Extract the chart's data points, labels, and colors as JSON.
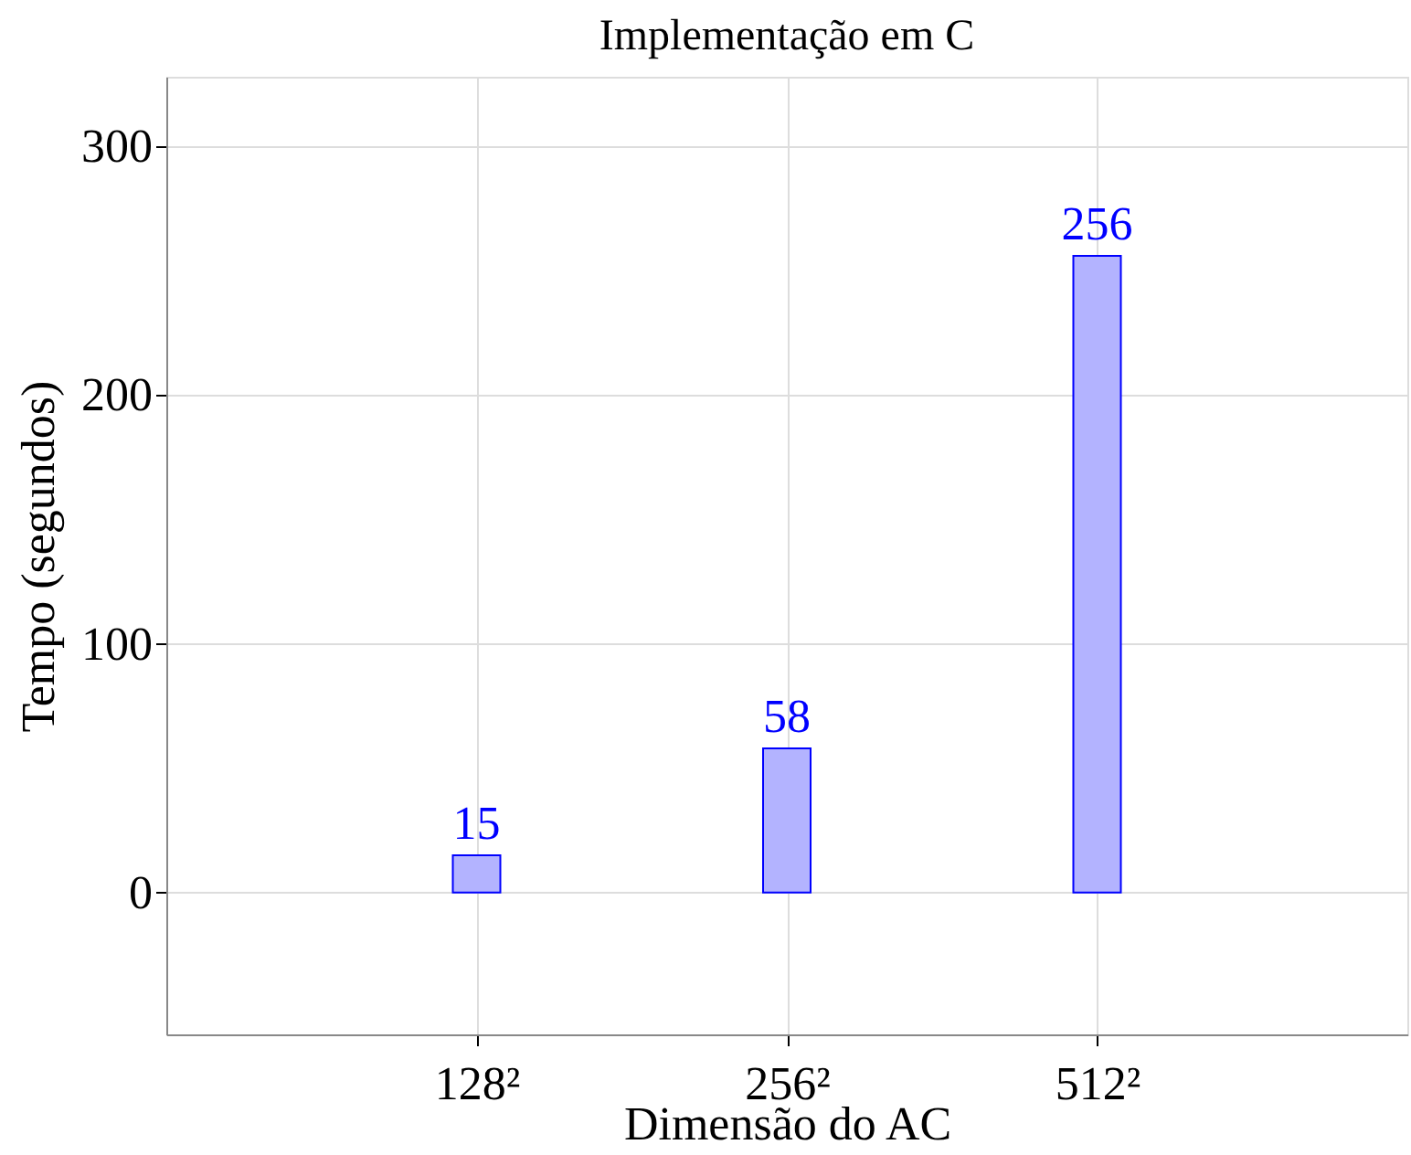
{
  "chart_data": {
    "type": "bar",
    "title": "Implementação em C",
    "xlabel": "Dimensão do AC",
    "ylabel": "Tempo (segundos)",
    "categories": [
      "128²",
      "256²",
      "512²"
    ],
    "values": [
      15,
      58,
      256
    ],
    "color": "#b3b3ff",
    "ylim": [
      -57,
      328
    ],
    "yticks": [
      0,
      100,
      200,
      300
    ],
    "grid": true,
    "data_labels": true
  }
}
